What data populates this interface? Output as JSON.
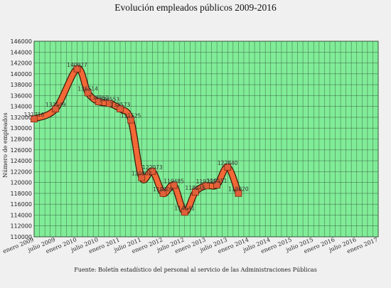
{
  "chart_data": {
    "type": "line",
    "title": "Evolución empleados públicos 2009-2016",
    "ylabel": "Número de empleados",
    "xlabel": "",
    "ylim": [
      110000,
      146000
    ],
    "yticks": [
      110000,
      112000,
      114000,
      116000,
      118000,
      120000,
      122000,
      124000,
      126000,
      128000,
      130000,
      132000,
      134000,
      136000,
      138000,
      140000,
      142000,
      144000,
      146000
    ],
    "grid": true,
    "colors": {
      "plot_bg": "#80ec98",
      "grid": "#3a5a3a",
      "line": "#f26836",
      "marker": "#e0603a",
      "marker_edge": "#7a2a10"
    },
    "categories": [
      "enero 2009",
      "julio 2009",
      "enero 2010",
      "julio 2010",
      "enero 2011",
      "julio 2011",
      "enero 2012",
      "julio 2012",
      "enero 2013",
      "julio 2013",
      "enero 2014",
      "julio 2014",
      "enero 2015",
      "julio 2015",
      "enero 2016",
      "julio 2016",
      "enero 2017"
    ],
    "points": [
      {
        "x": 0.0,
        "value": 131716,
        "label": "131716"
      },
      {
        "x": 1.0,
        "value": 133549,
        "label": "133549"
      },
      {
        "x": 2.0,
        "value": 140927,
        "label": "140927"
      },
      {
        "x": 2.5,
        "value": 136514,
        "label": "136514"
      },
      {
        "x": 3.0,
        "value": 134860,
        "label": "134860"
      },
      {
        "x": 3.5,
        "value": 134553,
        "label": "134553"
      },
      {
        "x": 4.0,
        "value": 133573,
        "label": "133573"
      },
      {
        "x": 4.5,
        "value": 131525,
        "label": "131525"
      },
      {
        "x": 5.0,
        "value": 120902,
        "label": "120902"
      },
      {
        "x": 5.5,
        "value": 122073,
        "label": "122073"
      },
      {
        "x": 6.0,
        "value": 118009,
        "label": "118009"
      },
      {
        "x": 6.5,
        "value": 119485,
        "label": "119485"
      },
      {
        "x": 7.0,
        "value": 114541,
        "label": "114541"
      },
      {
        "x": 7.5,
        "value": 118245,
        "label": "118245"
      },
      {
        "x": 8.0,
        "value": 119395,
        "label": "119395"
      },
      {
        "x": 8.5,
        "value": 119551,
        "label": "119551"
      },
      {
        "x": 9.0,
        "value": 122840,
        "label": "122840"
      },
      {
        "x": 9.5,
        "value": 118020,
        "label": "118020"
      }
    ]
  },
  "footer": {
    "source": "Fuente: Boletín estadístico del personal al servicio de las Administraciones Públicas"
  }
}
